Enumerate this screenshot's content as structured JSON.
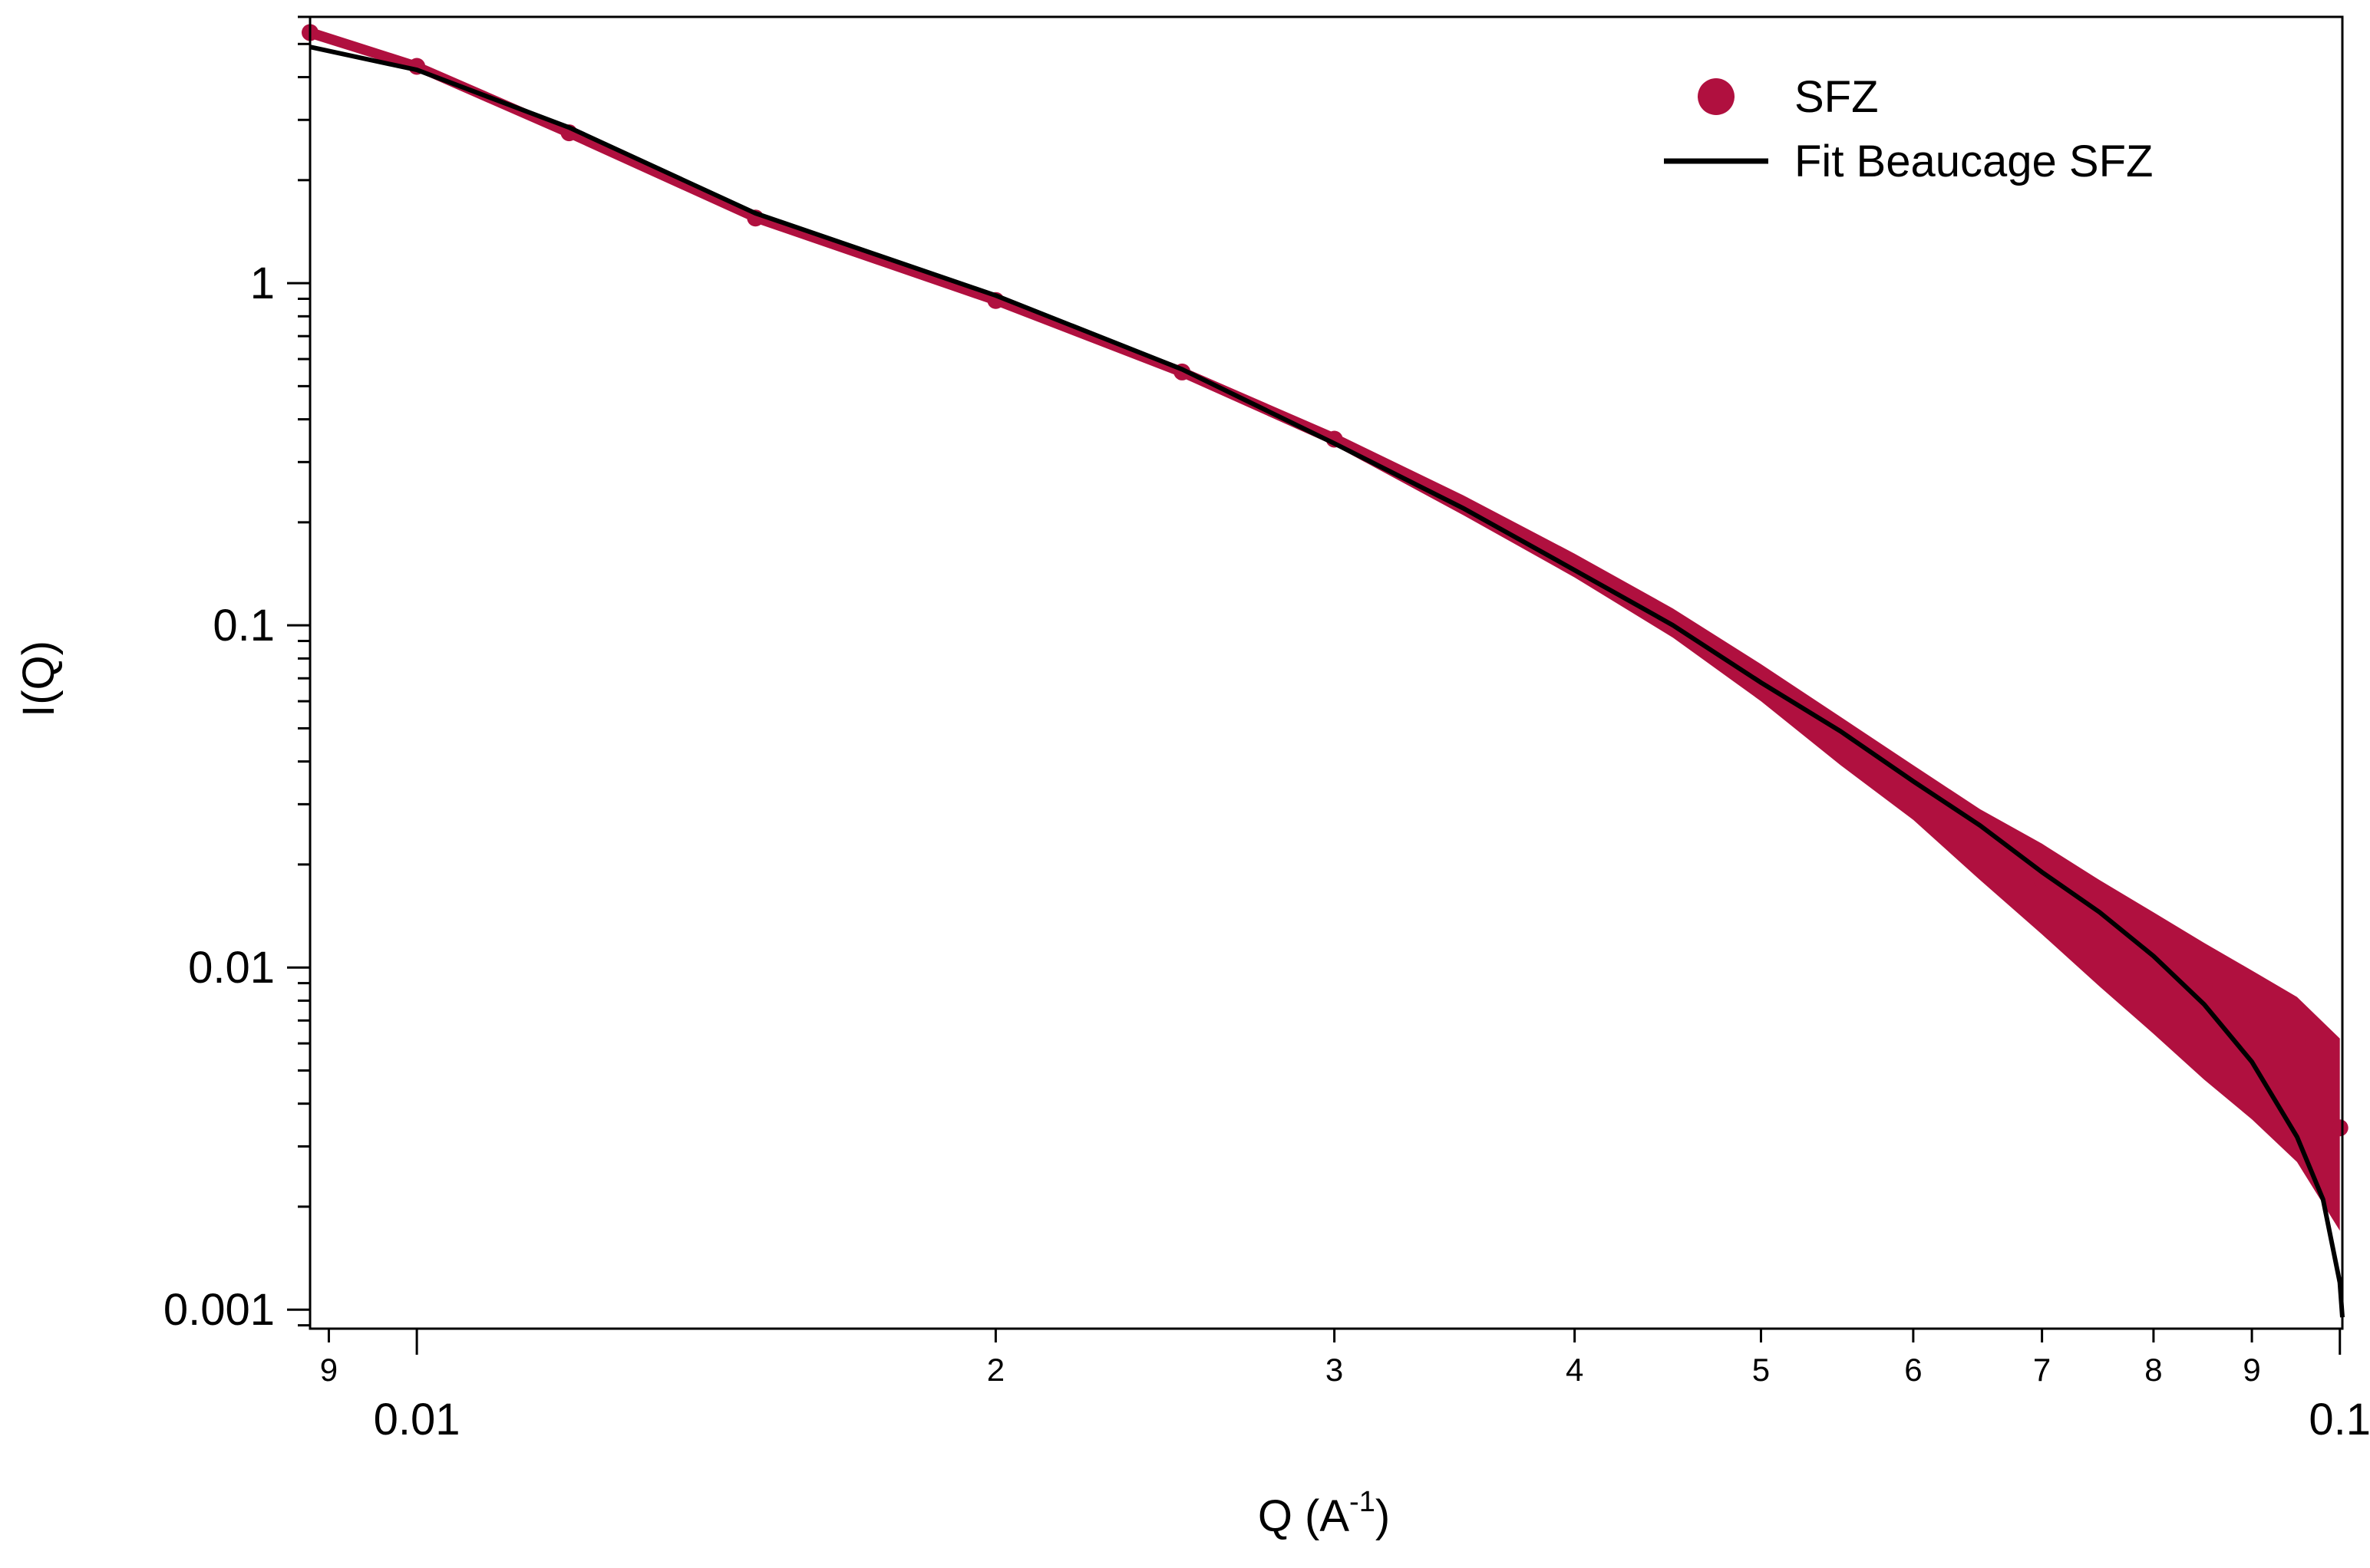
{
  "chart_data": {
    "type": "scatter",
    "title": "",
    "xlabel": "Q (A",
    "xlabel_superscript": "-1",
    "xlabel_close": ")",
    "ylabel": "I(Q)",
    "xscale": "log",
    "yscale": "log",
    "xlim": [
      0.0088,
      0.1003
    ],
    "ylim": [
      0.00088,
      6.0
    ],
    "x_tick_labels": [
      {
        "value": 0.009,
        "label": "9",
        "major": false
      },
      {
        "value": 0.01,
        "label": "0.01",
        "major": true
      },
      {
        "value": 0.02,
        "label": "2",
        "major": false
      },
      {
        "value": 0.03,
        "label": "3",
        "major": false
      },
      {
        "value": 0.04,
        "label": "4",
        "major": false
      },
      {
        "value": 0.05,
        "label": "5",
        "major": false
      },
      {
        "value": 0.06,
        "label": "6",
        "major": false
      },
      {
        "value": 0.07,
        "label": "7",
        "major": false
      },
      {
        "value": 0.08,
        "label": "8",
        "major": false
      },
      {
        "value": 0.09,
        "label": "9",
        "major": false
      },
      {
        "value": 0.1,
        "label": "0.1",
        "major": true
      }
    ],
    "y_tick_labels": [
      {
        "value": 1,
        "label": "1"
      },
      {
        "value": 0.1,
        "label": "0.1"
      },
      {
        "value": 0.01,
        "label": "0.01"
      },
      {
        "value": 0.001,
        "label": "0.001"
      }
    ],
    "grid": false,
    "legend_position": "top-right",
    "series": [
      {
        "name": "SFZ",
        "kind": "markers-with-error-band",
        "color": "#b0103f",
        "points": [
          {
            "x": 0.0088,
            "y": 5.4,
            "lo": 5.2,
            "hi": 5.6
          },
          {
            "x": 0.01,
            "y": 4.3,
            "lo": 4.15,
            "hi": 4.45
          },
          {
            "x": 0.012,
            "y": 2.75,
            "lo": 2.65,
            "hi": 2.85
          },
          {
            "x": 0.015,
            "y": 1.55,
            "lo": 1.5,
            "hi": 1.6
          },
          {
            "x": 0.02,
            "y": 0.89,
            "lo": 0.86,
            "hi": 0.92
          },
          {
            "x": 0.025,
            "y": 0.55,
            "lo": 0.53,
            "hi": 0.57
          },
          {
            "x": 0.03,
            "y": 0.35,
            "lo": 0.335,
            "hi": 0.365
          },
          {
            "x": 0.035,
            "y": 0.225,
            "lo": 0.21,
            "hi": 0.24
          },
          {
            "x": 0.04,
            "y": 0.15,
            "lo": 0.138,
            "hi": 0.162
          },
          {
            "x": 0.045,
            "y": 0.102,
            "lo": 0.092,
            "hi": 0.112
          },
          {
            "x": 0.05,
            "y": 0.068,
            "lo": 0.06,
            "hi": 0.077
          },
          {
            "x": 0.055,
            "y": 0.047,
            "lo": 0.039,
            "hi": 0.054
          },
          {
            "x": 0.06,
            "y": 0.033,
            "lo": 0.027,
            "hi": 0.039
          },
          {
            "x": 0.065,
            "y": 0.024,
            "lo": 0.018,
            "hi": 0.029
          },
          {
            "x": 0.07,
            "y": 0.018,
            "lo": 0.0125,
            "hi": 0.023
          },
          {
            "x": 0.075,
            "y": 0.0135,
            "lo": 0.0088,
            "hi": 0.018
          },
          {
            "x": 0.08,
            "y": 0.011,
            "lo": 0.0064,
            "hi": 0.0145
          },
          {
            "x": 0.085,
            "y": 0.0088,
            "lo": 0.0047,
            "hi": 0.0118
          },
          {
            "x": 0.09,
            "y": 0.0073,
            "lo": 0.0036,
            "hi": 0.0098
          },
          {
            "x": 0.095,
            "y": 0.0061,
            "lo": 0.0027,
            "hi": 0.0082
          },
          {
            "x": 0.1,
            "y": 0.0034,
            "lo": 0.0017,
            "hi": 0.0062
          }
        ]
      },
      {
        "name": "Fit Beaucage SFZ",
        "kind": "line",
        "color": "#000000",
        "points": [
          {
            "x": 0.0088,
            "y": 4.9
          },
          {
            "x": 0.01,
            "y": 4.2
          },
          {
            "x": 0.012,
            "y": 2.85
          },
          {
            "x": 0.015,
            "y": 1.6
          },
          {
            "x": 0.02,
            "y": 0.92
          },
          {
            "x": 0.025,
            "y": 0.56
          },
          {
            "x": 0.03,
            "y": 0.34
          },
          {
            "x": 0.035,
            "y": 0.22
          },
          {
            "x": 0.04,
            "y": 0.145
          },
          {
            "x": 0.045,
            "y": 0.1
          },
          {
            "x": 0.05,
            "y": 0.068
          },
          {
            "x": 0.055,
            "y": 0.049
          },
          {
            "x": 0.06,
            "y": 0.035
          },
          {
            "x": 0.065,
            "y": 0.026
          },
          {
            "x": 0.07,
            "y": 0.019
          },
          {
            "x": 0.075,
            "y": 0.0145
          },
          {
            "x": 0.08,
            "y": 0.0108
          },
          {
            "x": 0.085,
            "y": 0.0078
          },
          {
            "x": 0.09,
            "y": 0.0053
          },
          {
            "x": 0.095,
            "y": 0.0032
          },
          {
            "x": 0.098,
            "y": 0.0021
          },
          {
            "x": 0.1,
            "y": 0.0012
          },
          {
            "x": 0.1003,
            "y": 0.00095
          }
        ]
      }
    ]
  }
}
